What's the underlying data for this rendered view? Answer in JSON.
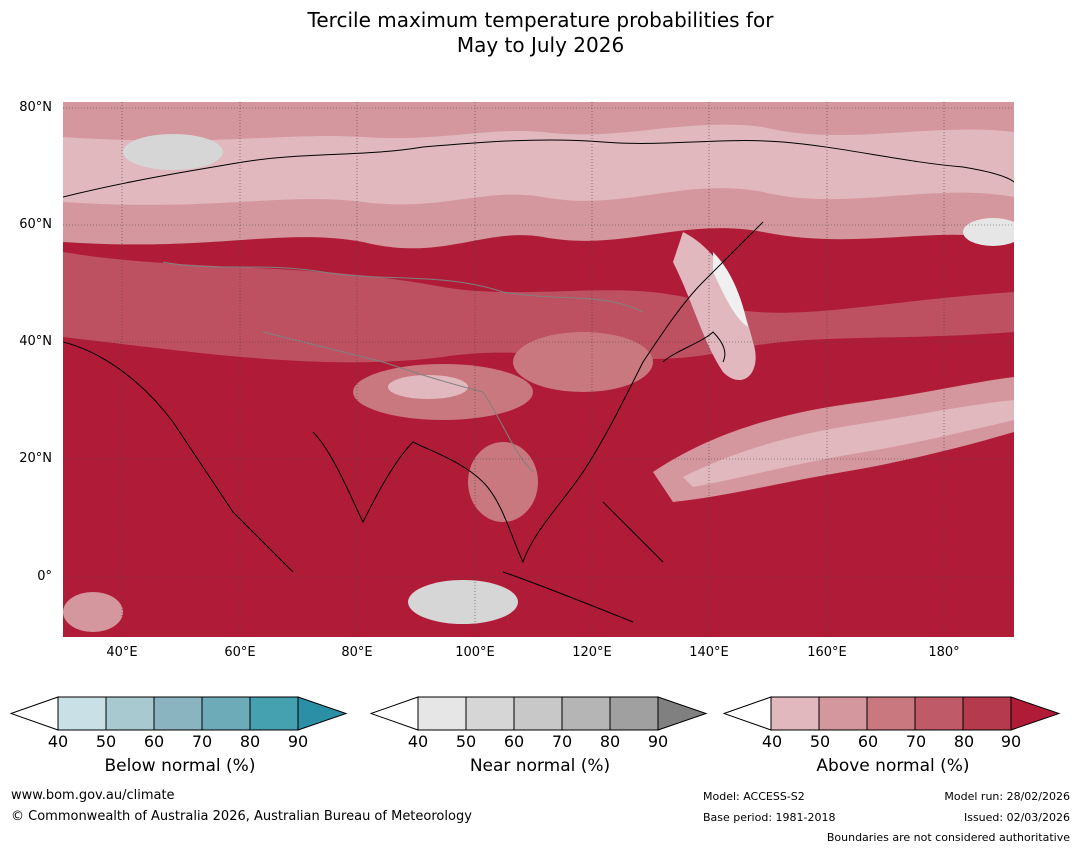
{
  "title_line1": "Tercile maximum temperature probabilities for",
  "title_line2": "May to July 2026",
  "lat_labels": [
    "80°N",
    "60°N",
    "40°N",
    "20°N",
    "0°"
  ],
  "lon_labels": [
    "40°E",
    "60°E",
    "80°E",
    "100°E",
    "120°E",
    "140°E",
    "160°E",
    "180°"
  ],
  "legends": [
    {
      "label": "Below normal (%)",
      "ticks": [
        "40",
        "50",
        "60",
        "70",
        "80",
        "90"
      ],
      "colors": [
        "#c9e1e6",
        "#a8c9cf",
        "#8ab4bf",
        "#6eabb8",
        "#45a0b0",
        "#2b8fa6"
      ]
    },
    {
      "label": "Near normal (%)",
      "ticks": [
        "40",
        "50",
        "60",
        "70",
        "80",
        "90"
      ],
      "colors": [
        "#e6e6e6",
        "#d6d6d6",
        "#c8c8c8",
        "#b5b5b5",
        "#a0a0a0",
        "#808080"
      ]
    },
    {
      "label": "Above normal (%)",
      "ticks": [
        "40",
        "50",
        "60",
        "70",
        "80",
        "90"
      ],
      "colors": [
        "#e0b8bd",
        "#d5979e",
        "#c97880",
        "#bf5a68",
        "#b53a4e",
        "#b01c38"
      ]
    }
  ],
  "footer": {
    "website": "www.bom.gov.au/climate",
    "copyright": "© Commonwealth of Australia 2026, Australian Bureau of Meteorology",
    "model": "Model: ACCESS-S2",
    "base_period": "Base period: 1981-2018",
    "model_run": "Model run: 28/02/2026",
    "issued": "Issued: 02/03/2026",
    "boundaries_note": "Boundaries are not considered authoritative"
  }
}
